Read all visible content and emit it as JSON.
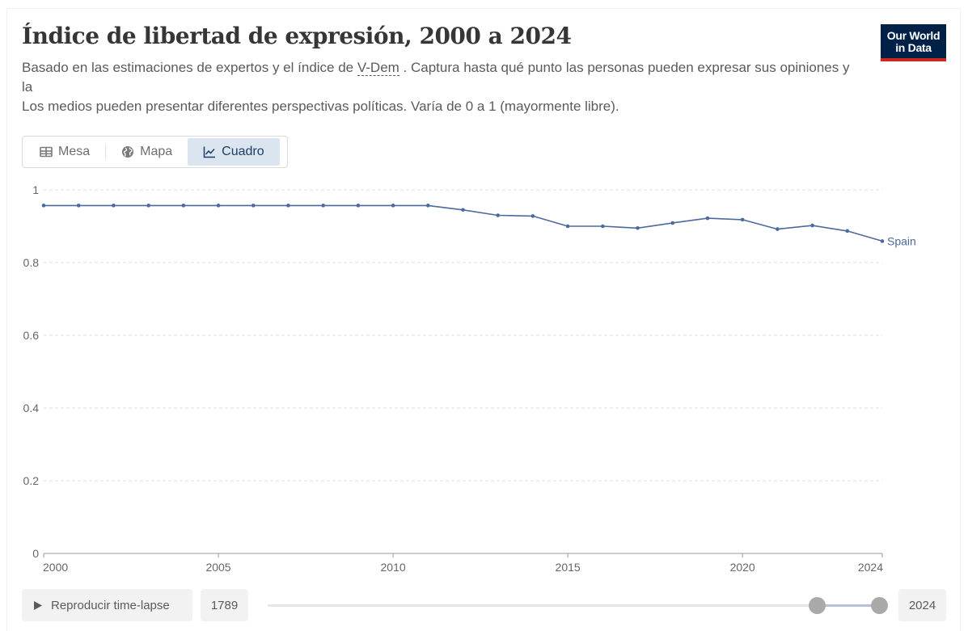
{
  "header": {
    "title": "Índice de libertad de expresión, 2000 a 2024",
    "subtitle_before_link": "Basado en las estimaciones de expertos y el índice de ",
    "subtitle_link": "V-Dem",
    "subtitle_after_link": " . Captura hasta qué punto las personas pueden expresar sus opiniones y la",
    "subtitle_line2": "Los medios pueden presentar diferentes perspectivas políticas. Varía de 0 a 1 (mayormente libre)."
  },
  "logo": {
    "line1": "Our World",
    "line2": "in Data"
  },
  "tabs": [
    {
      "label": "Mesa",
      "icon": "table-icon",
      "active": false
    },
    {
      "label": "Mapa",
      "icon": "globe-icon",
      "active": false
    },
    {
      "label": "Cuadro",
      "icon": "line-chart-icon",
      "active": true
    }
  ],
  "colors": {
    "series": "#4c6a9c",
    "active_tab_bg": "#dbe5f0",
    "logo_bg": "#002147",
    "logo_bar": "#ce261e"
  },
  "chart_data": {
    "type": "line",
    "title": "Índice de libertad de expresión, 2000 a 2024",
    "xlabel": "",
    "ylabel": "",
    "xlim": [
      2000,
      2024
    ],
    "ylim": [
      0,
      1
    ],
    "x_ticks": [
      "2000",
      "2005",
      "2010",
      "2015",
      "2020",
      "2024"
    ],
    "y_ticks": [
      "0",
      "0.2",
      "0.4",
      "0.6",
      "0.8",
      "1"
    ],
    "grid": true,
    "series": [
      {
        "name": "Spain",
        "x": [
          2000,
          2001,
          2002,
          2003,
          2004,
          2005,
          2006,
          2007,
          2008,
          2009,
          2010,
          2011,
          2012,
          2013,
          2014,
          2015,
          2016,
          2017,
          2018,
          2019,
          2020,
          2021,
          2022,
          2023,
          2024
        ],
        "values": [
          0.957,
          0.957,
          0.957,
          0.957,
          0.957,
          0.957,
          0.957,
          0.957,
          0.957,
          0.957,
          0.957,
          0.957,
          0.945,
          0.93,
          0.928,
          0.9,
          0.9,
          0.895,
          0.909,
          0.922,
          0.918,
          0.892,
          0.902,
          0.887,
          0.859
        ]
      }
    ]
  },
  "controls": {
    "play_label": "Reproducir time-lapse",
    "start_year": "1789",
    "end_year": "2024"
  }
}
